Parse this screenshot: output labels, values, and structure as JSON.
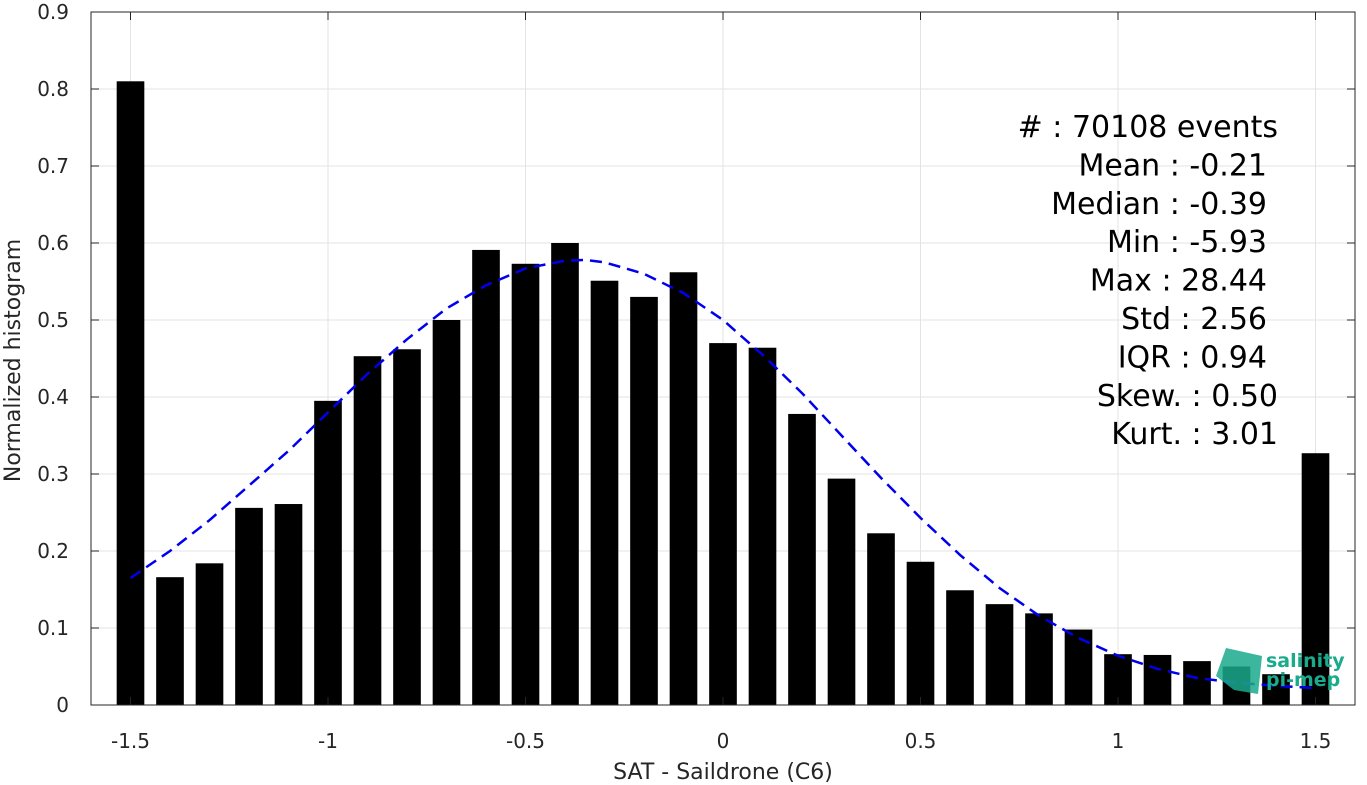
{
  "chart_data": {
    "type": "bar",
    "title": "",
    "xlabel": "SAT - Saildrone (C6)",
    "ylabel": "Normalized histogram",
    "xlim": [
      -1.6,
      1.6
    ],
    "ylim": [
      0,
      0.9
    ],
    "grid": true,
    "xticks": [
      -1.5,
      -1,
      -0.5,
      0,
      0.5,
      1,
      1.5
    ],
    "xtick_labels": [
      "-1.5",
      "-1",
      "-0.5",
      "0",
      "0.5",
      "1",
      "1.5"
    ],
    "yticks": [
      0,
      0.1,
      0.2,
      0.3,
      0.4,
      0.5,
      0.6,
      0.7,
      0.8,
      0.9
    ],
    "ytick_labels": [
      "0",
      "0.1",
      "0.2",
      "0.3",
      "0.4",
      "0.5",
      "0.6",
      "0.7",
      "0.8",
      "0.9"
    ],
    "bar_color": "#000000",
    "bar_width": 0.07,
    "series": [
      {
        "x": [
          -1.5,
          -1.4,
          -1.3,
          -1.2,
          -1.1,
          -1.0,
          -0.9,
          -0.8,
          -0.7,
          -0.6,
          -0.5,
          -0.4,
          -0.3,
          -0.2,
          -0.1,
          0.0,
          0.1,
          0.2,
          0.3,
          0.4,
          0.5,
          0.6,
          0.7,
          0.8,
          0.9,
          1.0,
          1.1,
          1.2,
          1.3,
          1.4,
          1.5
        ],
        "values": [
          0.81,
          0.166,
          0.184,
          0.256,
          0.261,
          0.395,
          0.453,
          0.462,
          0.5,
          0.591,
          0.573,
          0.6,
          0.551,
          0.53,
          0.562,
          0.47,
          0.464,
          0.378,
          0.294,
          0.223,
          0.186,
          0.149,
          0.131,
          0.119,
          0.098,
          0.066,
          0.065,
          0.057,
          0.05,
          0.04,
          0.327
        ]
      }
    ],
    "fit_curve": {
      "style": "dashed",
      "color": "#0000ee",
      "x": [
        -1.5,
        -1.4,
        -1.3,
        -1.2,
        -1.1,
        -1.0,
        -0.9,
        -0.8,
        -0.7,
        -0.6,
        -0.5,
        -0.4,
        -0.35,
        -0.3,
        -0.2,
        -0.1,
        0.0,
        0.1,
        0.2,
        0.3,
        0.4,
        0.5,
        0.6,
        0.7,
        0.8,
        0.9,
        1.0,
        1.1,
        1.2,
        1.3,
        1.4,
        1.5
      ],
      "y": [
        0.165,
        0.2,
        0.24,
        0.285,
        0.33,
        0.38,
        0.43,
        0.475,
        0.515,
        0.545,
        0.567,
        0.577,
        0.578,
        0.575,
        0.56,
        0.535,
        0.5,
        0.455,
        0.405,
        0.35,
        0.295,
        0.243,
        0.195,
        0.152,
        0.116,
        0.087,
        0.064,
        0.047,
        0.035,
        0.029,
        0.025,
        0.022
      ]
    },
    "annotations": [
      "#  : 70108 events",
      "Mean : -0.21",
      "Median : -0.39",
      "Min : -5.93",
      "Max : 28.44",
      "Std : 2.56",
      "IQR : 0.94",
      "Skew. : 0.50",
      "Kurt. : 3.01"
    ],
    "logo": {
      "name": "salinity-pi-mep-logo",
      "line1": "salinity",
      "line2": "pi-mep",
      "color": "#1aaa8c"
    }
  }
}
